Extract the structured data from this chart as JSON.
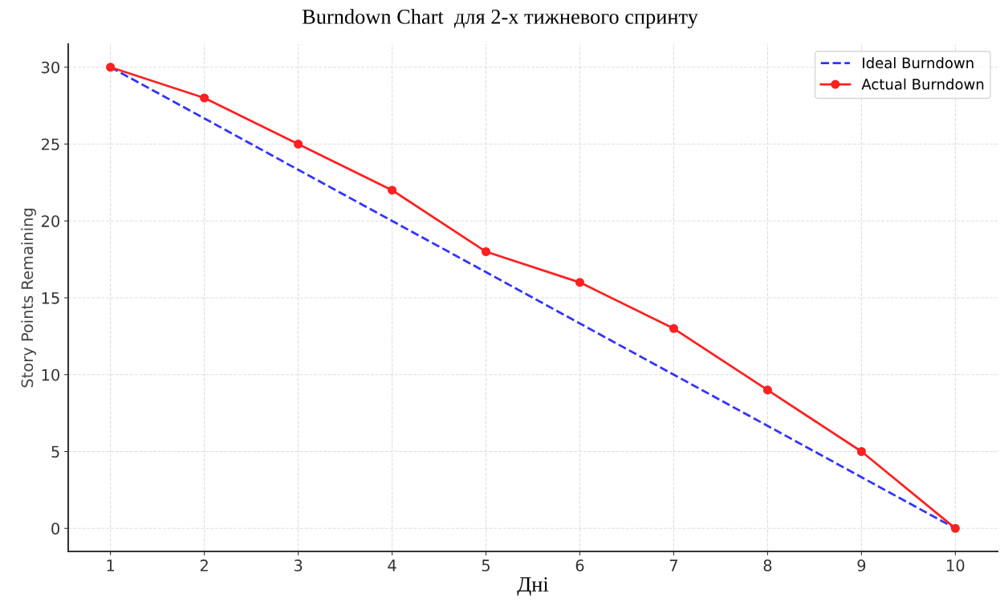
{
  "chart_data": {
    "type": "line",
    "title": "Burndown Chart  для 2-х тижневого спринту",
    "xlabel": "Дні",
    "ylabel": "Story Points Remaining",
    "x": [
      1,
      2,
      3,
      4,
      5,
      6,
      7,
      8,
      9,
      10
    ],
    "series": [
      {
        "name": "Ideal Burndown",
        "color": "#3333ff",
        "line_style": "dashed",
        "marker": "none",
        "values": [
          30,
          26.67,
          23.33,
          20,
          16.67,
          13.33,
          10,
          6.67,
          3.33,
          0
        ]
      },
      {
        "name": "Actual Burndown",
        "color": "#ff2020",
        "line_style": "solid",
        "marker": "circle",
        "values": [
          30,
          28,
          25,
          22,
          18,
          16,
          13,
          9,
          5,
          0
        ]
      }
    ],
    "xlim": [
      0.55,
      10.45
    ],
    "xticks": [
      1,
      2,
      3,
      4,
      5,
      6,
      7,
      8,
      9,
      10
    ],
    "ylim": [
      -1.5,
      31.5
    ],
    "yticks": [
      0,
      5,
      10,
      15,
      20,
      25,
      30
    ],
    "grid": true,
    "legend": "top right"
  }
}
